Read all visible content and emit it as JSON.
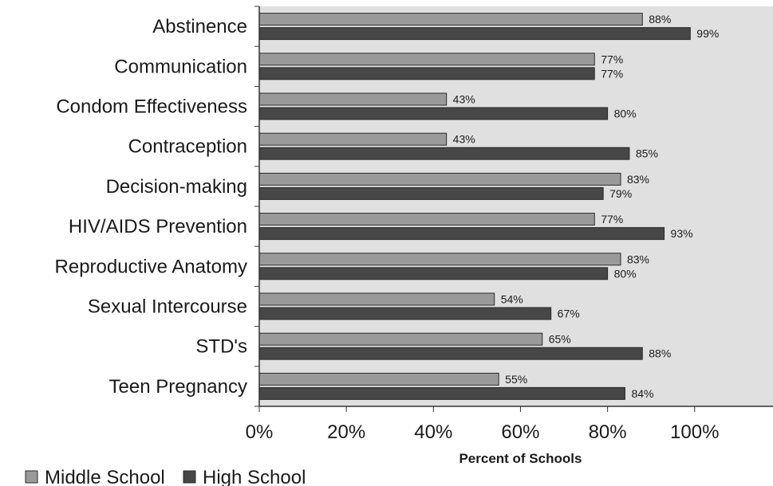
{
  "chart_data": {
    "type": "bar",
    "orientation": "horizontal",
    "categories": [
      "Abstinence",
      "Communication",
      "Condom Effectiveness",
      "Contraception",
      "Decision-making",
      "HIV/AIDS Prevention",
      "Reproductive Anatomy",
      "Sexual Intercourse",
      "STD's",
      "Teen Pregnancy"
    ],
    "series": [
      {
        "name": "Middle School",
        "values": [
          88,
          77,
          43,
          43,
          83,
          77,
          83,
          54,
          65,
          55
        ],
        "labels": [
          "88%",
          "77%",
          "43%",
          "43%",
          "83%",
          "77%",
          "83%",
          "54%",
          "65%",
          "55%"
        ],
        "color": "#9a9a9a"
      },
      {
        "name": "High School",
        "values": [
          99,
          77,
          80,
          85,
          79,
          93,
          80,
          67,
          88,
          84
        ],
        "labels": [
          "99%",
          "77%",
          "80%",
          "85%",
          "79%",
          "93%",
          "80%",
          "67%",
          "88%",
          "84%"
        ],
        "color": "#474747"
      }
    ],
    "xlabel": "Percent of Schools",
    "ylabel": "",
    "xlim": [
      0,
      118
    ],
    "xticks": [
      0,
      20,
      40,
      60,
      80,
      100
    ],
    "xtick_labels": [
      "0%",
      "20%",
      "40%",
      "60%",
      "80%",
      "100%"
    ],
    "plot_background": "#e0e0e0",
    "grid": false,
    "legend_position": "bottom-left"
  }
}
